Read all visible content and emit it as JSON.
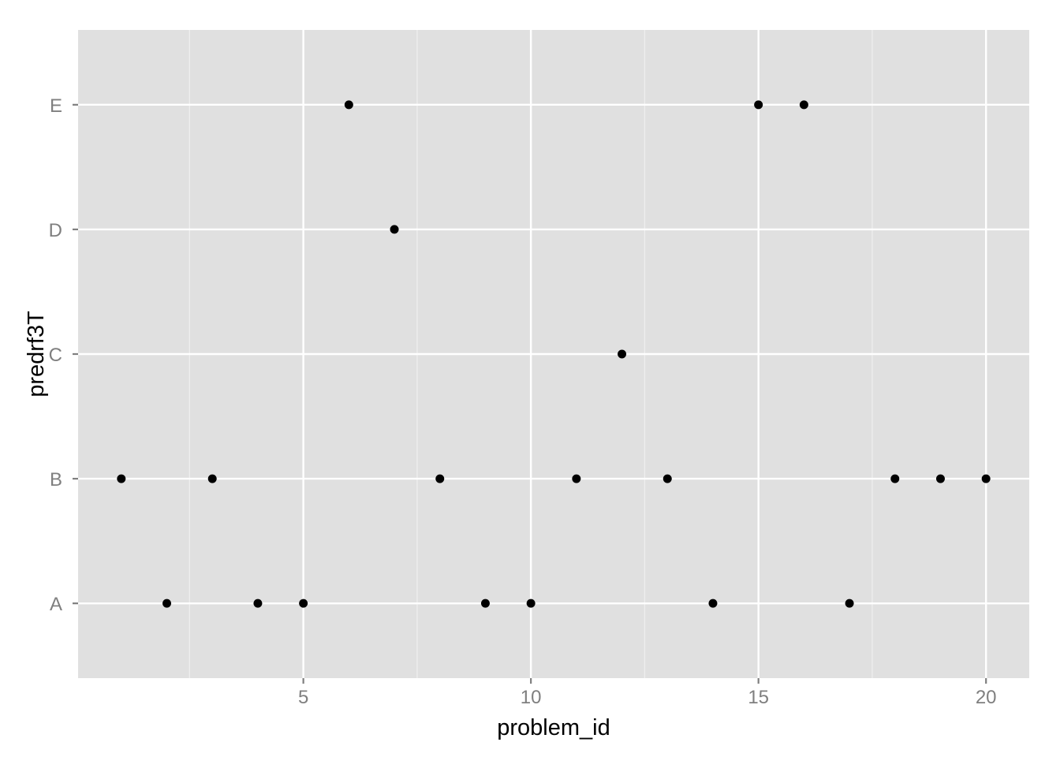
{
  "chart_data": {
    "type": "scatter",
    "title": "",
    "xlabel": "problem_id",
    "ylabel": "predrf3T",
    "x_ticks": [
      5,
      10,
      15,
      20
    ],
    "y_categories": [
      "A",
      "B",
      "C",
      "D",
      "E"
    ],
    "xlim": [
      0.05,
      20.95
    ],
    "ylim": [
      0.4,
      5.6
    ],
    "grid": true,
    "legend": "none",
    "colors": {
      "panel": "#e0e0e0",
      "grid_major": "#ffffff",
      "grid_minor": "#efefef",
      "point": "#000000",
      "tick": "#7f7f7f",
      "text": "#000000"
    },
    "points": [
      {
        "x": 1,
        "y": "B"
      },
      {
        "x": 2,
        "y": "A"
      },
      {
        "x": 3,
        "y": "B"
      },
      {
        "x": 4,
        "y": "A"
      },
      {
        "x": 5,
        "y": "A"
      },
      {
        "x": 6,
        "y": "E"
      },
      {
        "x": 7,
        "y": "D"
      },
      {
        "x": 8,
        "y": "B"
      },
      {
        "x": 9,
        "y": "A"
      },
      {
        "x": 10,
        "y": "A"
      },
      {
        "x": 11,
        "y": "B"
      },
      {
        "x": 12,
        "y": "C"
      },
      {
        "x": 13,
        "y": "B"
      },
      {
        "x": 14,
        "y": "A"
      },
      {
        "x": 15,
        "y": "E"
      },
      {
        "x": 16,
        "y": "E"
      },
      {
        "x": 17,
        "y": "A"
      },
      {
        "x": 18,
        "y": "B"
      },
      {
        "x": 19,
        "y": "B"
      },
      {
        "x": 20,
        "y": "B"
      }
    ]
  }
}
